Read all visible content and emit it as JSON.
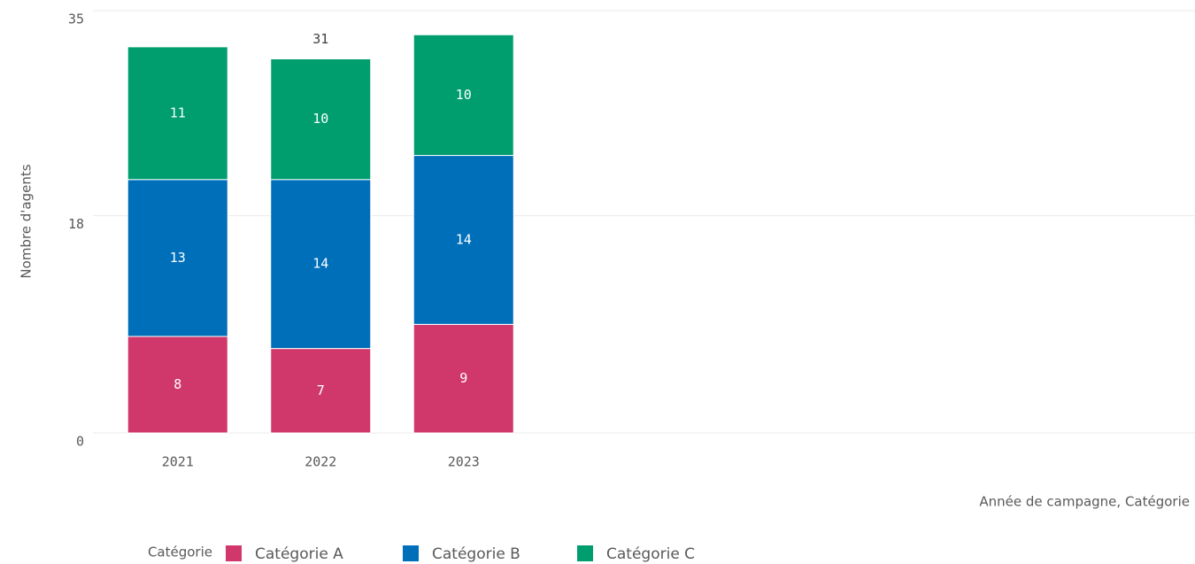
{
  "chart_data": {
    "type": "stacked_bar",
    "y_axis_label": "Nombre d'agents",
    "x_axis_label": "Année de campagne, Catégorie",
    "legend_title": "Catégorie",
    "categories": [
      "2021",
      "2022",
      "2023"
    ],
    "series": [
      {
        "name": "Catégorie A",
        "color": "#d0386b",
        "values": [
          8,
          7,
          9
        ]
      },
      {
        "name": "Catégorie B",
        "color": "#006fba",
        "values": [
          13,
          14,
          14
        ]
      },
      {
        "name": "Catégorie C",
        "color": "#009e6e",
        "values": [
          11,
          10,
          10
        ]
      }
    ],
    "totals": [
      null,
      31,
      null
    ],
    "ylim": [
      0,
      35
    ],
    "yticks": [
      0,
      18,
      35
    ],
    "grid": true,
    "legend": "bottom-left"
  }
}
